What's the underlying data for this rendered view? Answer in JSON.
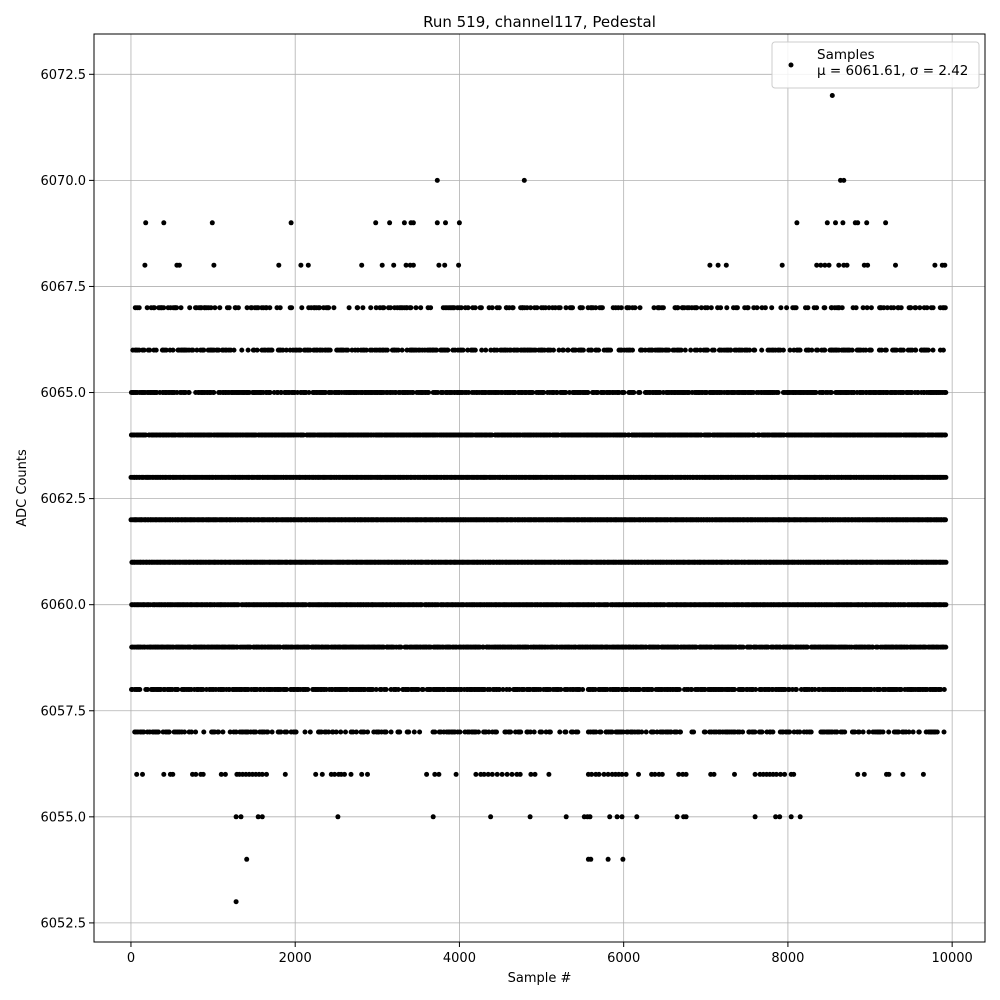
{
  "chart_data": {
    "type": "scatter",
    "title": "Run 519, channel117, Pedestal",
    "xlabel": "Sample #",
    "ylabel": "ADC Counts",
    "xlim": [
      -450,
      10400
    ],
    "ylim": [
      6052.05,
      6073.45
    ],
    "xticks": [
      0,
      2000,
      4000,
      6000,
      8000,
      10000
    ],
    "xtick_labels": [
      "0",
      "2000",
      "4000",
      "6000",
      "8000",
      "10000"
    ],
    "yticks": [
      6052.5,
      6055.0,
      6057.5,
      6060.0,
      6062.5,
      6065.0,
      6067.5,
      6070.0,
      6072.5
    ],
    "ytick_labels": [
      "6052.5",
      "6055.0",
      "6057.5",
      "6060.0",
      "6062.5",
      "6065.0",
      "6067.5",
      "6070.0",
      "6072.5"
    ],
    "grid": true,
    "legend": {
      "placement": "top-right",
      "entries": [
        "Samples",
        "μ = 6061.61, σ = 2.42"
      ]
    },
    "marker_color": "#000000",
    "series": [
      {
        "name": "Samples",
        "levels": [
          {
            "y": 6072,
            "x": [
              8540
            ]
          },
          {
            "y": 6070,
            "x": [
              3730,
              4790,
              8640,
              8680
            ]
          },
          {
            "y": 6069,
            "x": [
              180,
              400,
              990,
              1950,
              2980,
              3150,
              3330,
              3410,
              3440,
              3730,
              3830,
              4000,
              8110,
              8480,
              8580,
              8670,
              8820,
              8850,
              8960,
              9190
            ]
          },
          {
            "y": 6068,
            "x": [
              170,
              560,
              590,
              1010,
              1800,
              2070,
              2160,
              2810,
              3060,
              3200,
              3350,
              3400,
              3440,
              3750,
              3820,
              3990,
              7050,
              7150,
              7250,
              7930,
              8350,
              8400,
              8450,
              8500,
              8620,
              8680,
              8720,
              8930,
              8970,
              9310,
              9790,
              9880,
              9910
            ]
          },
          {
            "y": 6066,
            "range": [
              0,
              9920
            ],
            "density": 0.55
          },
          {
            "y": 6067,
            "range": [
              0,
              9920
            ],
            "density": 0.35
          },
          {
            "y": 6065,
            "range": [
              0,
              9920
            ],
            "density": 0.8
          },
          {
            "y": 6064,
            "range": [
              0,
              9920
            ],
            "density": 0.95
          },
          {
            "y": 6063,
            "range": [
              0,
              9920
            ],
            "density": 1.0
          },
          {
            "y": 6062,
            "range": [
              0,
              9920
            ],
            "density": 1.0
          },
          {
            "y": 6061,
            "range": [
              0,
              9920
            ],
            "density": 1.0
          },
          {
            "y": 6060,
            "range": [
              0,
              9920
            ],
            "density": 0.97
          },
          {
            "y": 6059,
            "range": [
              0,
              9920
            ],
            "density": 0.9
          },
          {
            "y": 6058,
            "range": [
              0,
              9920
            ],
            "density": 0.75
          },
          {
            "y": 6057,
            "range": [
              0,
              9920
            ],
            "density": 0.45
          },
          {
            "y": 6056,
            "x": [
              70,
              140,
              400,
              480,
              510,
              750,
              790,
              850,
              880,
              1100,
              1150,
              1290,
              1320,
              1360,
              1400,
              1440,
              1480,
              1520,
              1560,
              1600,
              1650,
              1880,
              2250,
              2330,
              2440,
              2480,
              2530,
              2560,
              2600,
              2680,
              2810,
              2880,
              3600,
              3700,
              3750,
              3960,
              4200,
              4260,
              4300,
              4350,
              4400,
              4460,
              4520,
              4580,
              4640,
              4700,
              4740,
              4870,
              4920,
              5090,
              5570,
              5610,
              5660,
              5700,
              5760,
              5810,
              5860,
              5900,
              5940,
              5980,
              6030,
              6180,
              6340,
              6380,
              6430,
              6470,
              6670,
              6720,
              6760,
              7060,
              7100,
              7350,
              7600,
              7660,
              7700,
              7740,
              7780,
              7820,
              7860,
              7910,
              7960,
              8040,
              8070,
              8850,
              8930,
              9200,
              9230,
              9400,
              9650
            ]
          },
          {
            "y": 6055,
            "x": [
              1280,
              1340,
              1550,
              1600,
              2520,
              3680,
              4380,
              4860,
              5300,
              5520,
              5560,
              5590,
              5830,
              5920,
              5980,
              6160,
              6650,
              6730,
              6760,
              7600,
              7850,
              7900,
              8040,
              8150
            ]
          },
          {
            "y": 6054,
            "x": [
              1410,
              5570,
              5600,
              5810,
              5990
            ]
          },
          {
            "y": 6053,
            "x": [
              1280
            ]
          }
        ]
      }
    ]
  }
}
